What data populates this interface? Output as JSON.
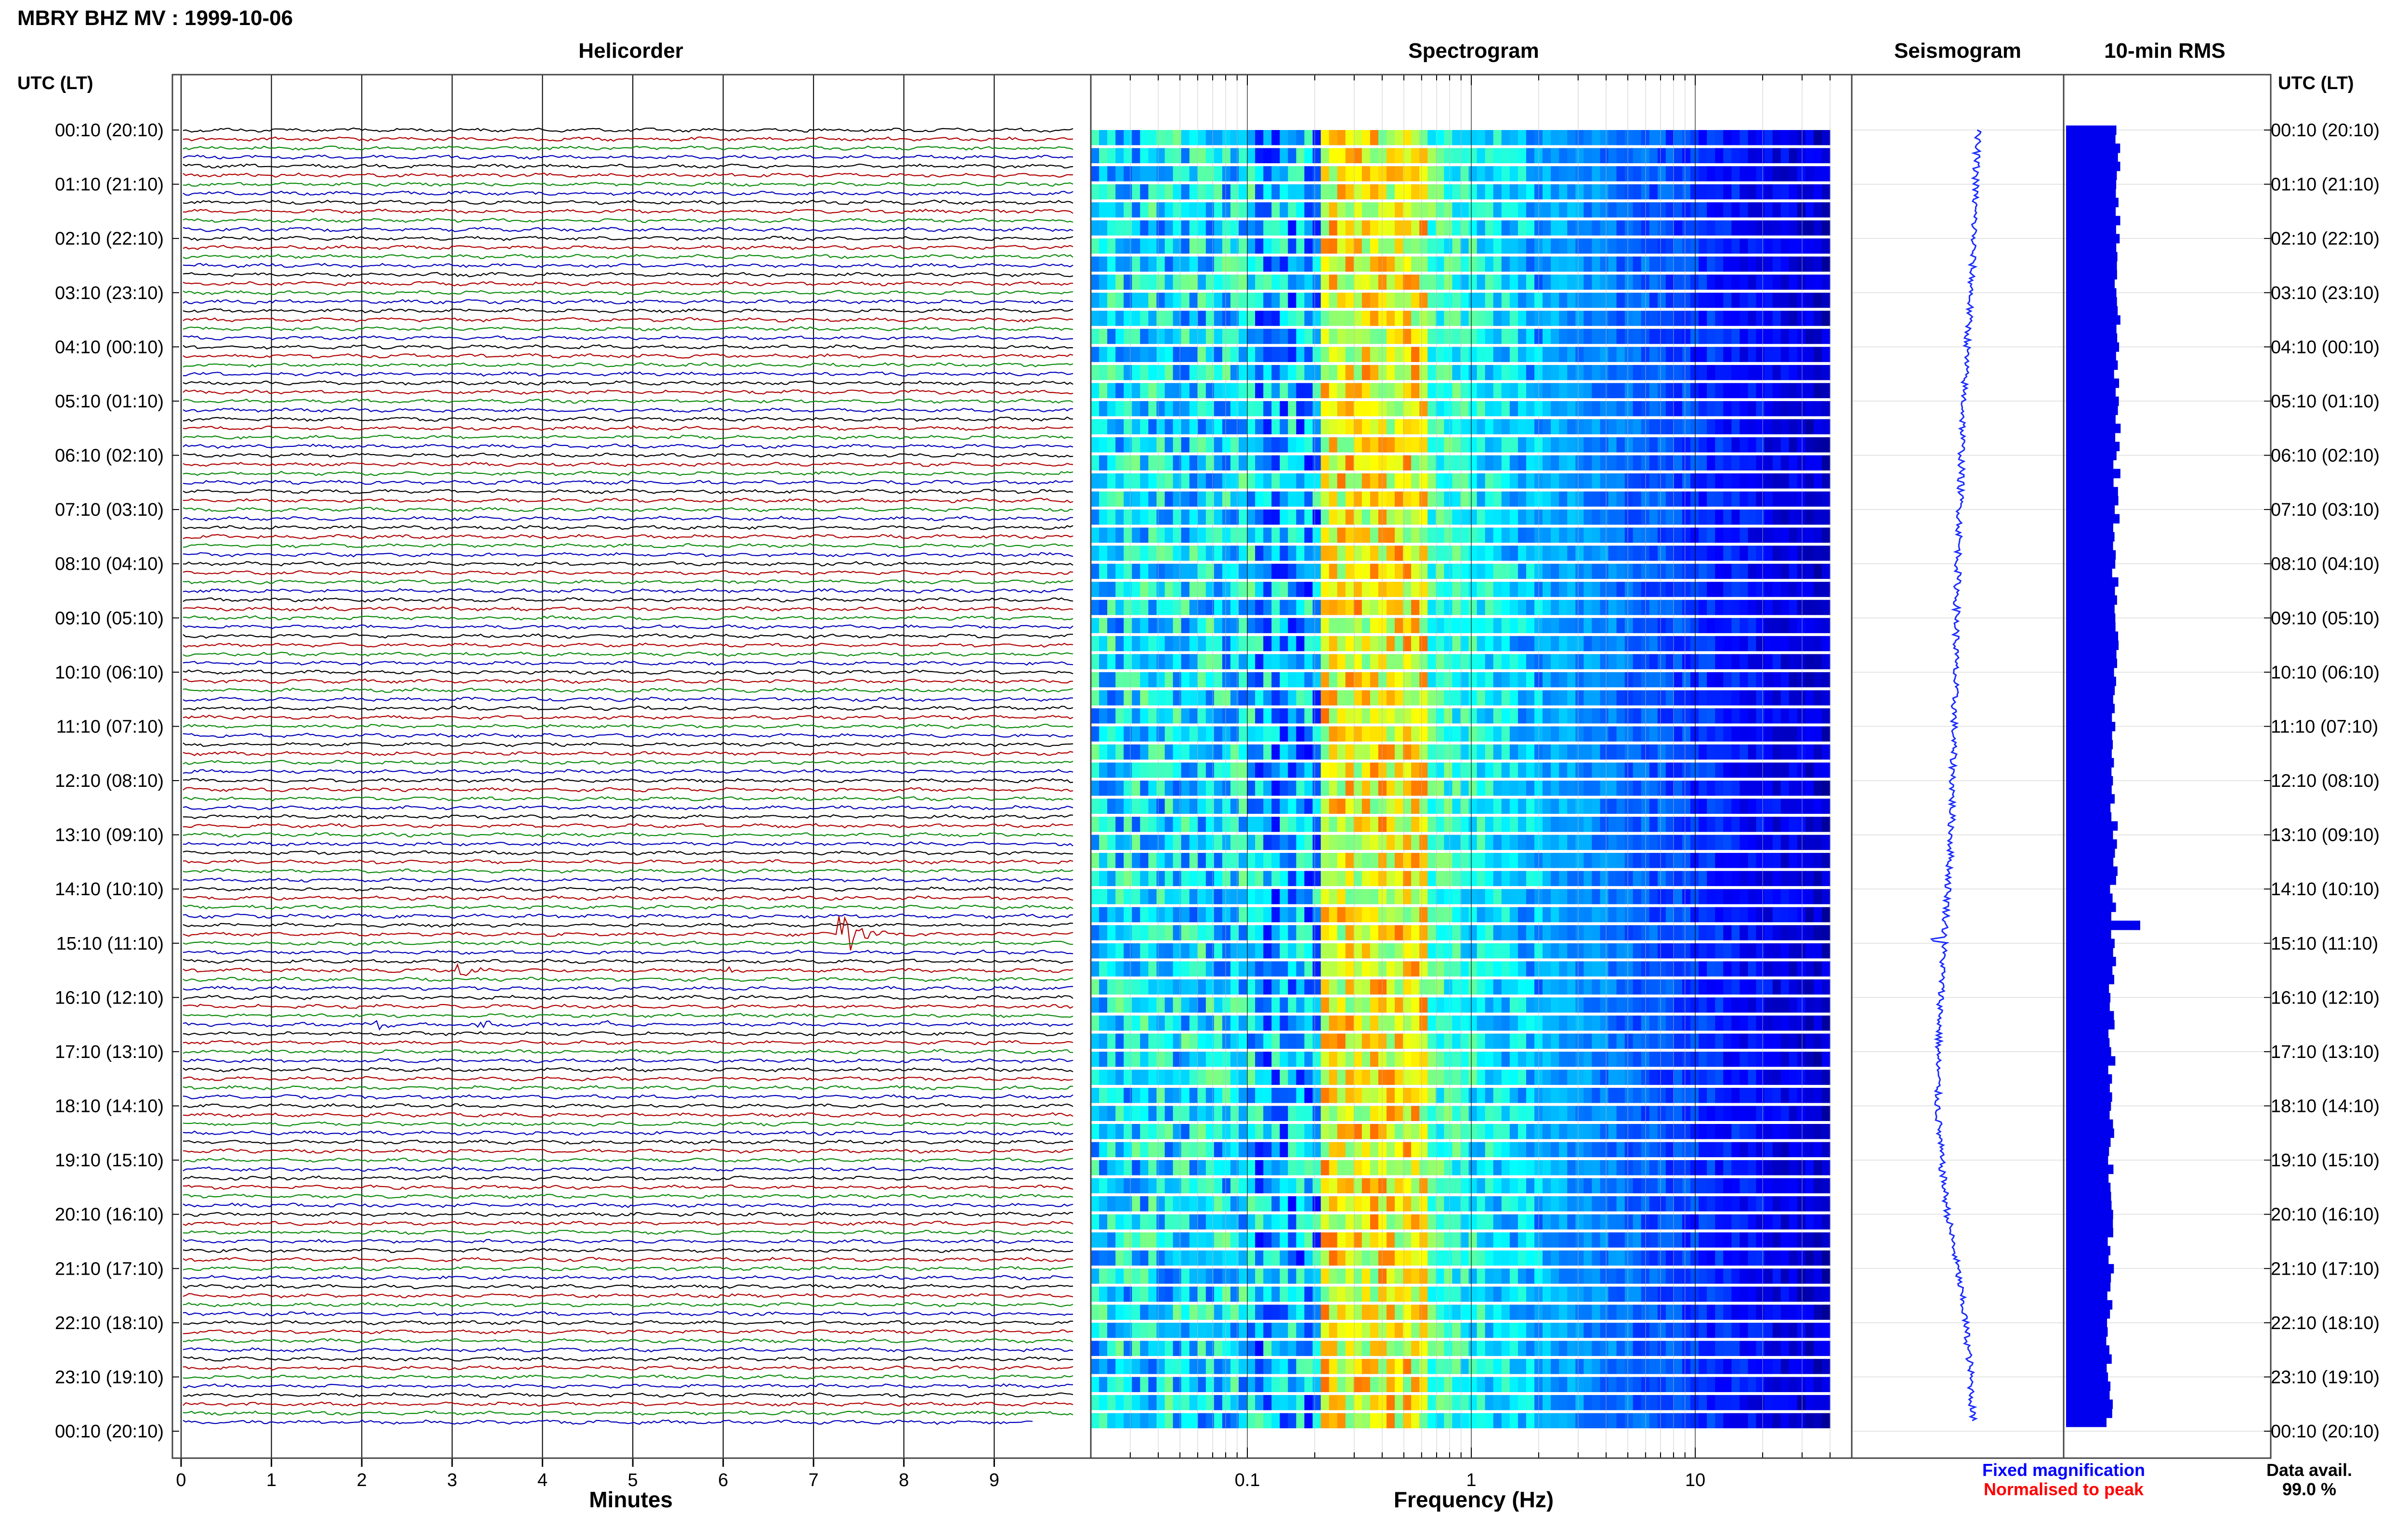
{
  "header": {
    "title": "MBRY BHZ MV : 1999-10-06"
  },
  "colors": {
    "trace_cycle": [
      "#000000",
      "#b00000",
      "#0a8a0a",
      "#0000bb"
    ],
    "rms_fill": "#0000ee",
    "seismogram": "#1a2cff",
    "legend_fixed": "#0000ff",
    "legend_norm": "#ff0000"
  },
  "legend": {
    "fixed": "Fixed magnification",
    "normalised": "Normalised to peak",
    "data_avail_label": "Data avail.",
    "data_avail_value": "99.0 %"
  },
  "chart_data": [
    {
      "type": "line",
      "title": "Helicorder",
      "xlabel": "Minutes",
      "ylabel": "UTC (LT)",
      "x_ticks": [
        "0",
        "1",
        "2",
        "3",
        "4",
        "5",
        "6",
        "7",
        "8",
        "9"
      ],
      "xlim": [
        0,
        10
      ],
      "y_ticks": [
        "00:10 (20:10)",
        "01:10 (21:10)",
        "02:10 (22:10)",
        "03:10 (23:10)",
        "04:10 (00:10)",
        "05:10 (01:10)",
        "06:10 (02:10)",
        "07:10 (03:10)",
        "08:10 (04:10)",
        "09:10 (05:10)",
        "10:10 (06:10)",
        "11:10 (07:10)",
        "12:10 (08:10)",
        "13:10 (09:10)",
        "14:10 (10:10)",
        "15:10 (11:10)",
        "16:10 (12:10)",
        "17:10 (13:10)",
        "18:10 (14:10)",
        "19:10 (15:10)",
        "20:10 (16:10)",
        "21:10 (17:10)",
        "22:10 (18:10)",
        "23:10 (19:10)",
        "00:10 (20:10)"
      ],
      "rows": 144,
      "grid": true,
      "events": [
        {
          "row": 89,
          "minute": 7.3,
          "amplitude": 3.2
        },
        {
          "row": 93,
          "minute": 3.1,
          "amplitude": 0.8
        },
        {
          "row": 93,
          "minute": 6.0,
          "amplitude": 0.6
        },
        {
          "row": 99,
          "minute": 2.2,
          "amplitude": 0.6
        },
        {
          "row": 99,
          "minute": 3.3,
          "amplitude": 0.5
        },
        {
          "row": 99,
          "minute": 4.7,
          "amplitude": 0.6
        },
        {
          "row": 130,
          "minute": 9.9,
          "amplitude": 0.7
        }
      ]
    },
    {
      "type": "heatmap",
      "title": "Spectrogram",
      "xlabel": "Frequency (Hz)",
      "x_scale": "log",
      "x_ticks": [
        "0.1",
        "1",
        "10"
      ],
      "xlim": [
        0.02,
        50
      ],
      "freq_cutoff_hz": 40,
      "rows": 72,
      "colormap": "jet",
      "peak_band_hz": [
        0.2,
        0.6
      ]
    },
    {
      "type": "line",
      "title": "Seismogram",
      "description": "vertical trace, drifting baseline",
      "baseline_offsets": [
        0.55,
        0.5,
        0.45,
        0.38,
        0.28,
        0.18,
        0.12,
        0.08,
        0.03,
        -0.02,
        -0.05,
        -0.08,
        -0.12,
        -0.15,
        -0.2,
        -0.3,
        -0.4,
        -0.48,
        -0.55,
        -0.55,
        -0.45,
        -0.28,
        -0.02,
        0.2,
        0.35,
        0.42
      ]
    },
    {
      "type": "bar",
      "title": "10-min RMS",
      "orientation": "horizontal",
      "rows": 144,
      "typical_value": 1.0,
      "peak": {
        "row": 88,
        "value": 1.4
      }
    }
  ],
  "right_axis": {
    "label": "UTC (LT)"
  }
}
